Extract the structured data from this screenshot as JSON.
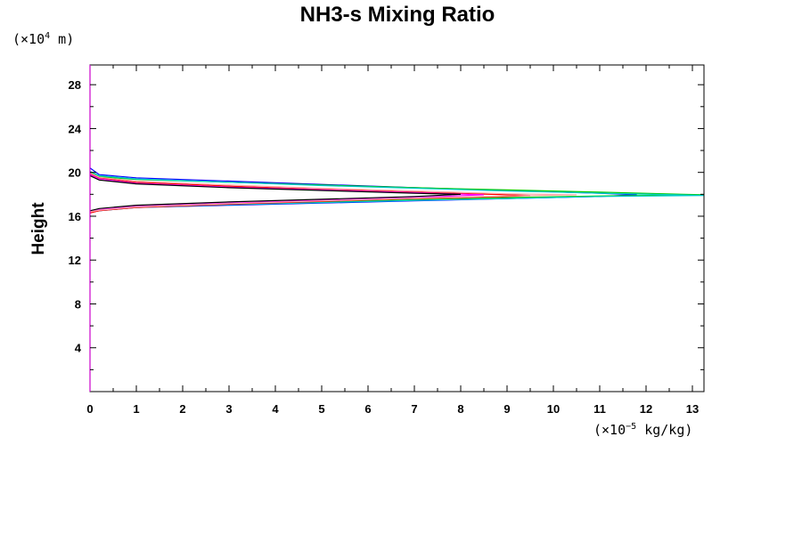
{
  "chart_data": {
    "type": "line",
    "title": "NH3-s Mixing Ratio",
    "ylabel": "Height",
    "y_unit_prefix": "(×10",
    "y_unit_exp": "4",
    "y_unit_suffix": " m)",
    "x_unit_prefix": "(×10",
    "x_unit_exp": "−5",
    "x_unit_suffix": " kg/kg)",
    "xlim": [
      0,
      13.25
    ],
    "ylim": [
      0,
      29.8
    ],
    "xticks": [
      0,
      1,
      2,
      3,
      4,
      5,
      6,
      7,
      8,
      9,
      10,
      11,
      12,
      13
    ],
    "yticks": [
      4,
      8,
      12,
      16,
      20,
      24,
      28
    ],
    "grid": false,
    "series": [
      {
        "color": "#0000ff",
        "points": [
          [
            0,
            20.4
          ],
          [
            0.2,
            19.8
          ],
          [
            1,
            19.5
          ],
          [
            3,
            19.2
          ],
          [
            5,
            18.9
          ],
          [
            7,
            18.6
          ],
          [
            9,
            18.35
          ],
          [
            11,
            18.1
          ],
          [
            11.8,
            17.95
          ],
          [
            11,
            17.8
          ],
          [
            9,
            17.6
          ],
          [
            7,
            17.4
          ],
          [
            5,
            17.2
          ],
          [
            3,
            17.0
          ],
          [
            1,
            16.8
          ],
          [
            0.2,
            16.5
          ],
          [
            0,
            16.35
          ]
        ]
      },
      {
        "color": "#00cc00",
        "points": [
          [
            0,
            20.0
          ],
          [
            0.2,
            19.6
          ],
          [
            1,
            19.35
          ],
          [
            3,
            19.1
          ],
          [
            5,
            18.85
          ],
          [
            7,
            18.6
          ],
          [
            9,
            18.4
          ],
          [
            11,
            18.2
          ],
          [
            13.25,
            17.95
          ],
          [
            11,
            17.85
          ],
          [
            9,
            17.7
          ],
          [
            7,
            17.5
          ],
          [
            5,
            17.3
          ],
          [
            3,
            17.1
          ],
          [
            1,
            16.85
          ],
          [
            0.2,
            16.55
          ],
          [
            0,
            16.4
          ]
        ]
      },
      {
        "color": "#00cccc",
        "points": [
          [
            0,
            20.1
          ],
          [
            0.2,
            19.7
          ],
          [
            1,
            19.4
          ],
          [
            3,
            19.1
          ],
          [
            5,
            18.8
          ],
          [
            7,
            18.55
          ],
          [
            9,
            18.3
          ],
          [
            11,
            18.1
          ],
          [
            13.25,
            17.9
          ],
          [
            11,
            17.8
          ],
          [
            9,
            17.6
          ],
          [
            7,
            17.45
          ],
          [
            5,
            17.25
          ],
          [
            3,
            17.05
          ],
          [
            1,
            16.8
          ],
          [
            0.2,
            16.5
          ],
          [
            0,
            16.35
          ]
        ]
      },
      {
        "color": "#ff0000",
        "points": [
          [
            0,
            19.9
          ],
          [
            0.2,
            19.5
          ],
          [
            1,
            19.1
          ],
          [
            3,
            18.75
          ],
          [
            5,
            18.45
          ],
          [
            7,
            18.2
          ],
          [
            9,
            17.95
          ],
          [
            9.5,
            17.9
          ],
          [
            9,
            17.8
          ],
          [
            7,
            17.6
          ],
          [
            5,
            17.35
          ],
          [
            3,
            17.1
          ],
          [
            1,
            16.8
          ],
          [
            0.2,
            16.5
          ],
          [
            0,
            16.3
          ]
        ]
      },
      {
        "color": "#ff00ff",
        "points": [
          [
            0,
            19.8
          ],
          [
            0.2,
            19.4
          ],
          [
            1,
            19.0
          ],
          [
            3,
            18.65
          ],
          [
            5,
            18.4
          ],
          [
            7,
            18.15
          ],
          [
            8.5,
            17.95
          ],
          [
            7,
            17.7
          ],
          [
            5,
            17.45
          ],
          [
            3,
            17.2
          ],
          [
            1,
            16.9
          ],
          [
            0.2,
            16.6
          ],
          [
            0,
            16.4
          ]
        ]
      },
      {
        "color": "#000000",
        "points": [
          [
            0,
            19.7
          ],
          [
            0.2,
            19.3
          ],
          [
            1,
            18.95
          ],
          [
            3,
            18.6
          ],
          [
            5,
            18.35
          ],
          [
            7,
            18.1
          ],
          [
            8,
            18.0
          ],
          [
            7,
            17.8
          ],
          [
            5,
            17.55
          ],
          [
            3,
            17.3
          ],
          [
            1,
            17.0
          ],
          [
            0.2,
            16.7
          ],
          [
            0,
            16.5
          ]
        ]
      },
      {
        "color": "#ffaaaa",
        "points": [
          [
            0,
            19.95
          ],
          [
            0.2,
            19.55
          ],
          [
            1,
            19.2
          ],
          [
            3,
            18.85
          ],
          [
            5,
            18.55
          ],
          [
            7,
            18.3
          ],
          [
            9,
            18.05
          ],
          [
            10.5,
            17.95
          ],
          [
            9,
            17.85
          ],
          [
            7,
            17.65
          ],
          [
            5,
            17.4
          ],
          [
            3,
            17.15
          ],
          [
            1,
            16.85
          ],
          [
            0.2,
            16.55
          ],
          [
            0,
            16.4
          ]
        ]
      }
    ]
  }
}
